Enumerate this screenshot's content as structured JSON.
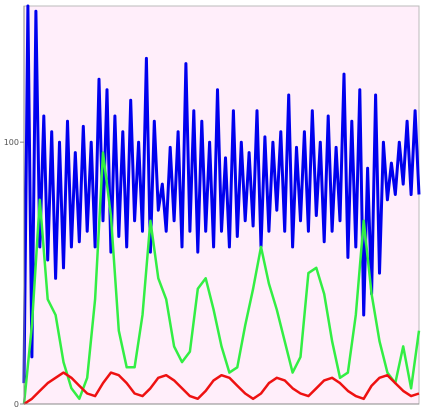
{
  "chart_data": {
    "type": "line",
    "title": "",
    "xlabel": "",
    "ylabel": "",
    "xlim": [
      0,
      100
    ],
    "ylim": [
      0,
      152
    ],
    "y_ticks": [
      {
        "value": 0,
        "label": "0"
      },
      {
        "value": 100,
        "label": "100"
      }
    ],
    "grid": false,
    "legend": "none",
    "background": "#ffeefa",
    "series": [
      {
        "color": "#0000ee",
        "x": [
          0,
          1,
          2,
          3,
          4,
          5,
          6,
          7,
          8,
          9,
          10,
          11,
          12,
          13,
          14,
          15,
          16,
          17,
          18,
          19,
          20,
          21,
          22,
          23,
          24,
          25,
          26,
          27,
          28,
          29,
          30,
          31,
          32,
          33,
          34,
          35,
          36,
          37,
          38,
          39,
          40,
          41,
          42,
          43,
          44,
          45,
          46,
          47,
          48,
          49,
          50,
          51,
          52,
          53,
          54,
          55,
          56,
          57,
          58,
          59,
          60,
          61,
          62,
          63,
          64,
          65,
          66,
          67,
          68,
          69,
          70,
          71,
          72,
          73,
          74,
          75,
          76,
          77,
          78,
          79,
          80,
          81,
          82,
          83,
          84,
          85,
          86,
          87,
          88,
          89,
          90,
          91,
          92,
          93,
          94,
          95,
          96,
          97,
          98,
          99,
          100
        ],
        "values": [
          8,
          152,
          18,
          150,
          60,
          110,
          55,
          104,
          48,
          100,
          52,
          108,
          60,
          96,
          62,
          106,
          66,
          100,
          60,
          124,
          70,
          120,
          58,
          110,
          64,
          104,
          60,
          116,
          70,
          100,
          66,
          132,
          58,
          108,
          74,
          84,
          66,
          98,
          70,
          104,
          60,
          130,
          66,
          112,
          58,
          108,
          66,
          100,
          60,
          120,
          66,
          94,
          60,
          112,
          64,
          100,
          70,
          96,
          68,
          112,
          60,
          102,
          66,
          100,
          74,
          104,
          66,
          118,
          60,
          98,
          70,
          104,
          66,
          112,
          72,
          100,
          62,
          110,
          66,
          98,
          70,
          126,
          56,
          108,
          60,
          120,
          34,
          90,
          42,
          118,
          50,
          100,
          78,
          92,
          80,
          100,
          84,
          108,
          80,
          112,
          80
        ]
      },
      {
        "color": "#33ee44",
        "x": [
          0,
          2,
          4,
          6,
          8,
          10,
          12,
          14,
          16,
          18,
          20,
          22,
          24,
          26,
          28,
          30,
          32,
          34,
          36,
          38,
          40,
          42,
          44,
          46,
          48,
          50,
          52,
          54,
          56,
          58,
          60,
          62,
          64,
          66,
          68,
          70,
          72,
          74,
          76,
          78,
          80,
          82,
          84,
          86,
          88,
          90,
          92,
          94,
          96,
          98,
          100
        ],
        "values": [
          0,
          30,
          78,
          40,
          34,
          16,
          6,
          2,
          10,
          40,
          96,
          72,
          28,
          14,
          14,
          34,
          70,
          48,
          40,
          22,
          16,
          20,
          44,
          48,
          36,
          22,
          12,
          14,
          30,
          44,
          60,
          46,
          36,
          24,
          12,
          18,
          50,
          52,
          42,
          24,
          10,
          12,
          34,
          70,
          42,
          24,
          12,
          8,
          22,
          6,
          28
        ]
      },
      {
        "color": "#ee1111",
        "x": [
          0,
          2,
          4,
          6,
          8,
          10,
          12,
          14,
          16,
          18,
          20,
          22,
          24,
          26,
          28,
          30,
          32,
          34,
          36,
          38,
          40,
          42,
          44,
          46,
          48,
          50,
          52,
          54,
          56,
          58,
          60,
          62,
          64,
          66,
          68,
          70,
          72,
          74,
          76,
          78,
          80,
          82,
          84,
          86,
          88,
          90,
          92,
          94,
          96,
          98,
          100
        ],
        "values": [
          0,
          2,
          5,
          8,
          10,
          12,
          10,
          7,
          4,
          3,
          8,
          12,
          11,
          8,
          4,
          3,
          6,
          10,
          11,
          9,
          6,
          3,
          2,
          5,
          9,
          11,
          10,
          7,
          4,
          2,
          4,
          8,
          10,
          9,
          6,
          4,
          3,
          6,
          9,
          10,
          8,
          5,
          3,
          2,
          7,
          10,
          11,
          8,
          5,
          3,
          4
        ]
      }
    ]
  }
}
